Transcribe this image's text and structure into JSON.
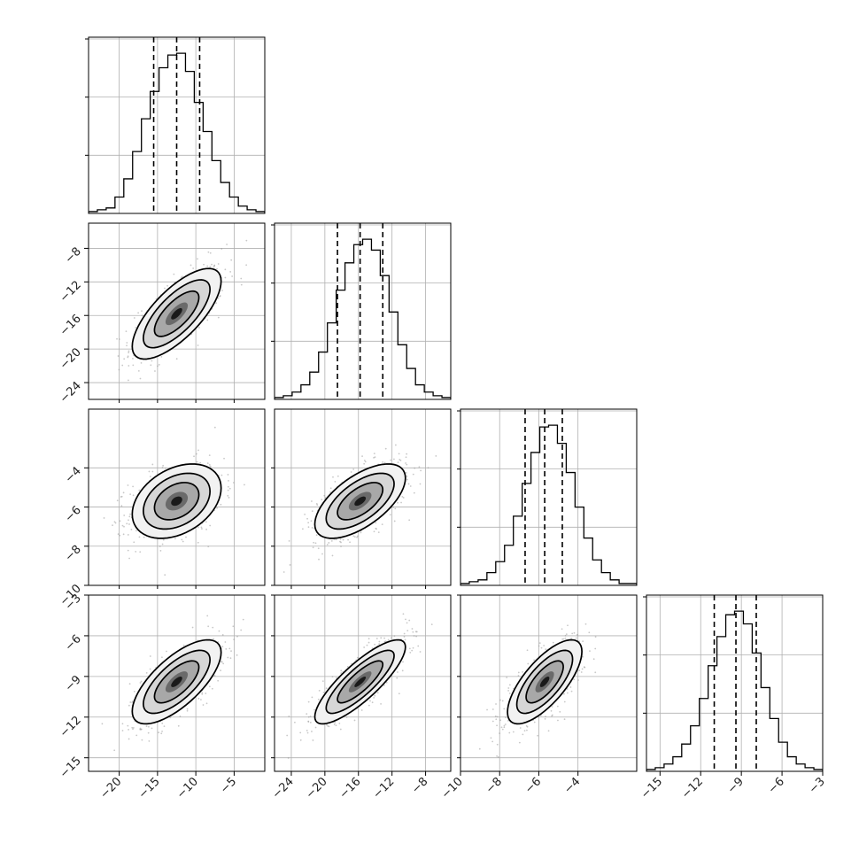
{
  "chart_data": {
    "type": "corner",
    "title": "",
    "parameters": [
      {
        "range": [
          -24,
          -1
        ],
        "ticks": [
          -20,
          -15,
          -10,
          -5
        ],
        "tick_labels": [
          "−20",
          "−15",
          "−10",
          "−5"
        ],
        "quantiles": [
          -15.5,
          -12.5,
          -9.5
        ],
        "mean": -12.5,
        "std": 2.9,
        "hist_counts": [
          1,
          2,
          3,
          9,
          19,
          34,
          52,
          67,
          80,
          87,
          88,
          78,
          61,
          45,
          29,
          17,
          9,
          4,
          2,
          1
        ]
      },
      {
        "range": [
          -26,
          -5
        ],
        "ticks": [
          -24,
          -20,
          -16,
          -12,
          -8
        ],
        "tick_labels": [
          "−24",
          "−20",
          "−16",
          "−12",
          "−8"
        ],
        "quantiles": [
          -18.5,
          -15.8,
          -13.1
        ],
        "mean": -15.8,
        "std": 2.7,
        "hist_counts": [
          1,
          2,
          4,
          8,
          15,
          26,
          42,
          60,
          75,
          85,
          88,
          82,
          68,
          48,
          30,
          17,
          8,
          4,
          2,
          1
        ]
      },
      {
        "range": [
          -10,
          -1
        ],
        "ticks": [
          -10,
          -8,
          -6,
          -4
        ],
        "tick_labels": [
          "−10",
          "−8",
          "−6",
          "−4"
        ],
        "quantiles": [
          -6.7,
          -5.7,
          -4.8
        ],
        "mean": -5.7,
        "std": 0.95,
        "hist_counts": [
          1,
          2,
          3,
          7,
          13,
          22,
          38,
          56,
          73,
          87,
          88,
          78,
          62,
          43,
          26,
          14,
          7,
          3,
          1,
          1
        ]
      },
      {
        "range": [
          -16,
          -3
        ],
        "ticks": [
          -15,
          -12,
          -9,
          -6,
          -3
        ],
        "tick_labels": [
          "−15",
          "−12",
          "−9",
          "−6",
          "−3"
        ],
        "quantiles": [
          -11.0,
          -9.4,
          -7.9
        ],
        "mean": -9.4,
        "std": 1.55,
        "hist_counts": [
          1,
          2,
          4,
          8,
          15,
          25,
          40,
          58,
          74,
          86,
          88,
          81,
          65,
          46,
          29,
          16,
          8,
          4,
          2,
          1
        ]
      }
    ],
    "y_axes": [
      null,
      {
        "ticks": [
          -24,
          -20,
          -16,
          -12,
          -8
        ],
        "tick_labels": [
          "−24",
          "−20",
          "−16",
          "−12",
          "−8"
        ]
      },
      {
        "ticks": [
          -10,
          -8,
          -6,
          -4
        ],
        "tick_labels": [
          "−10",
          "−8",
          "−6",
          "−4"
        ]
      },
      {
        "ticks": [
          -15,
          -12,
          -9,
          -6,
          -3
        ],
        "tick_labels": [
          "−15",
          "−12",
          "−9",
          "−6",
          "−3"
        ]
      }
    ],
    "correlations": [
      [
        1.0,
        0.72,
        0.35,
        0.7
      ],
      [
        0.72,
        1.0,
        0.62,
        0.83
      ],
      [
        0.35,
        0.62,
        1.0,
        0.72
      ],
      [
        0.7,
        0.83,
        0.72,
        1.0
      ]
    ],
    "contour_levels_sigma": [
      0.5,
      1.0,
      1.5,
      2.0
    ],
    "scatter_points_per_panel": 600,
    "grid": true,
    "colors": {
      "hist": "#000000",
      "contour": "#000000",
      "scatter": "#9a9a9a",
      "grid": "#b0b0b0"
    }
  }
}
